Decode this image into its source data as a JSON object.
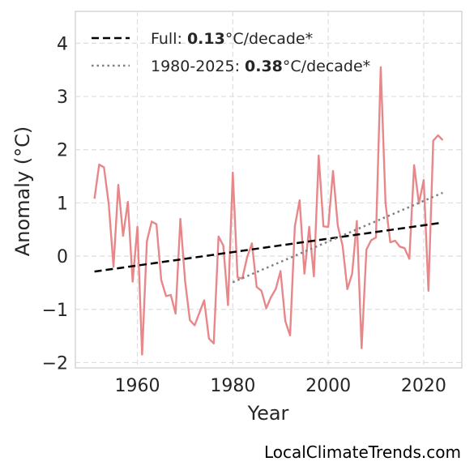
{
  "chart_data": {
    "type": "line",
    "xlabel": "Year",
    "ylabel": "Anomaly (°C)",
    "xlim": [
      1947,
      2028
    ],
    "ylim": [
      -2.1,
      4.6
    ],
    "xticks": [
      1960,
      1980,
      2000,
      2020
    ],
    "yticks": [
      -2,
      -1,
      0,
      1,
      2,
      3,
      4
    ],
    "ytick_labels": [
      "−2",
      "−1",
      "0",
      "1",
      "2",
      "3",
      "4"
    ],
    "grid": true,
    "legend_position": "top-left",
    "series": [
      {
        "color": "#e8878a",
        "x": [
          1951,
          1952,
          1953,
          1954,
          1955,
          1956,
          1957,
          1958,
          1959,
          1960,
          1961,
          1962,
          1963,
          1964,
          1965,
          1966,
          1967,
          1968,
          1969,
          1970,
          1971,
          1972,
          1974,
          1975,
          1976,
          1977,
          1978,
          1979,
          1980,
          1981,
          1982,
          1983,
          1984,
          1985,
          1986,
          1987,
          1988,
          1989,
          1990,
          1991,
          1992,
          1993,
          1994,
          1995,
          1996,
          1997,
          1998,
          1999,
          2000,
          2001,
          2002,
          2003,
          2004,
          2005,
          2006,
          2007,
          2008,
          2009,
          2010,
          2011,
          2012,
          2013,
          2014,
          2015,
          2016,
          2017,
          2018,
          2019,
          2020,
          2021,
          2022,
          2023,
          2024
        ],
        "values": [
          1.08,
          1.72,
          1.67,
          0.98,
          -0.2,
          1.34,
          0.38,
          1.02,
          -0.48,
          0.55,
          -1.85,
          0.28,
          0.65,
          0.6,
          -0.45,
          -0.75,
          -0.73,
          -1.08,
          0.7,
          -0.46,
          -1.2,
          -1.3,
          -0.83,
          -1.55,
          -1.64,
          0.37,
          0.2,
          -0.92,
          1.57,
          -0.4,
          -0.42,
          -0.02,
          0.24,
          -0.58,
          -0.65,
          -0.98,
          -0.77,
          -0.62,
          -0.28,
          -1.22,
          -1.49,
          0.56,
          1.05,
          -0.33,
          0.55,
          -0.38,
          1.89,
          0.56,
          0.55,
          1.6,
          0.57,
          0.2,
          -0.62,
          -0.33,
          0.66,
          -1.73,
          0.12,
          0.3,
          0.35,
          3.55,
          1.0,
          0.26,
          0.29,
          0.18,
          0.15,
          -0.05,
          1.71,
          0.99,
          1.43,
          -0.65,
          2.17,
          2.27,
          2.18
        ]
      },
      {
        "name": "Full",
        "style": "dashed",
        "color": "#000000",
        "x": [
          1951,
          2024
        ],
        "values": [
          -0.29,
          0.63
        ]
      },
      {
        "name": "1980-2025",
        "style": "dotted",
        "color": "#808080",
        "x": [
          1980,
          2024
        ],
        "values": [
          -0.49,
          1.19
        ]
      }
    ],
    "legend": [
      {
        "prefix": "Full: ",
        "value": "0.13",
        "suffix": "°C/decade*",
        "style": "dashed",
        "color": "#000000"
      },
      {
        "prefix": "1980-2025: ",
        "value": "0.38",
        "suffix": "°C/decade*",
        "style": "dotted",
        "color": "#808080"
      }
    ]
  },
  "credit": "LocalClimateTrends.com"
}
